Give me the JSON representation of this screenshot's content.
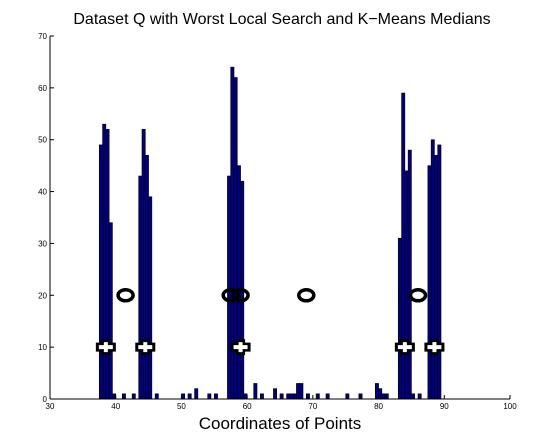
{
  "chart_data": {
    "type": "bar",
    "title": "Dataset Q with Worst Local Search and K−Means Medians",
    "xlabel": "Coordinates of Points",
    "ylabel": "",
    "xlim": [
      30,
      100
    ],
    "ylim": [
      0,
      70
    ],
    "xticks": [
      "30",
      "40",
      "50",
      "60",
      "70",
      "80",
      "90",
      "100"
    ],
    "yticks": [
      "0",
      "10",
      "20",
      "30",
      "40",
      "50",
      "60",
      "70"
    ],
    "grid": false,
    "bar_color": "#000080",
    "histogram": {
      "bin_width": 0.5,
      "bins": [
        {
          "x": 37.5,
          "y": 49
        },
        {
          "x": 38.0,
          "y": 53
        },
        {
          "x": 38.5,
          "y": 52
        },
        {
          "x": 39.0,
          "y": 34
        },
        {
          "x": 39.5,
          "y": 1
        },
        {
          "x": 41.0,
          "y": 1
        },
        {
          "x": 42.5,
          "y": 1
        },
        {
          "x": 43.5,
          "y": 43
        },
        {
          "x": 44.0,
          "y": 52
        },
        {
          "x": 44.5,
          "y": 47
        },
        {
          "x": 45.0,
          "y": 39
        },
        {
          "x": 46.0,
          "y": 1
        },
        {
          "x": 50.0,
          "y": 1
        },
        {
          "x": 51.0,
          "y": 1
        },
        {
          "x": 52.0,
          "y": 2
        },
        {
          "x": 54.0,
          "y": 1
        },
        {
          "x": 55.0,
          "y": 1
        },
        {
          "x": 57.0,
          "y": 43
        },
        {
          "x": 57.5,
          "y": 64
        },
        {
          "x": 58.0,
          "y": 62
        },
        {
          "x": 58.5,
          "y": 45
        },
        {
          "x": 59.0,
          "y": 42
        },
        {
          "x": 59.5,
          "y": 1
        },
        {
          "x": 61.0,
          "y": 3
        },
        {
          "x": 62.0,
          "y": 1
        },
        {
          "x": 64.0,
          "y": 2
        },
        {
          "x": 65.0,
          "y": 1
        },
        {
          "x": 66.0,
          "y": 1
        },
        {
          "x": 66.5,
          "y": 1
        },
        {
          "x": 67.0,
          "y": 1
        },
        {
          "x": 67.5,
          "y": 3
        },
        {
          "x": 68.0,
          "y": 3
        },
        {
          "x": 69.0,
          "y": 1
        },
        {
          "x": 70.5,
          "y": 1
        },
        {
          "x": 72.0,
          "y": 1
        },
        {
          "x": 75.0,
          "y": 1
        },
        {
          "x": 77.0,
          "y": 1
        },
        {
          "x": 79.5,
          "y": 3
        },
        {
          "x": 80.0,
          "y": 2
        },
        {
          "x": 80.5,
          "y": 1
        },
        {
          "x": 81.0,
          "y": 1
        },
        {
          "x": 83.0,
          "y": 31
        },
        {
          "x": 83.5,
          "y": 59
        },
        {
          "x": 84.0,
          "y": 44
        },
        {
          "x": 84.5,
          "y": 48
        },
        {
          "x": 85.0,
          "y": 1
        },
        {
          "x": 86.0,
          "y": 1
        },
        {
          "x": 87.5,
          "y": 45
        },
        {
          "x": 88.0,
          "y": 50
        },
        {
          "x": 88.5,
          "y": 47
        },
        {
          "x": 89.0,
          "y": 49
        }
      ]
    },
    "markers": [
      {
        "shape": "ellipse",
        "y": 20,
        "x": [
          41.5,
          57.5,
          59.0,
          69.0,
          86.0
        ]
      },
      {
        "shape": "plus",
        "y": 10,
        "x": [
          38.5,
          44.5,
          59.0,
          84.0,
          88.5
        ]
      }
    ]
  }
}
